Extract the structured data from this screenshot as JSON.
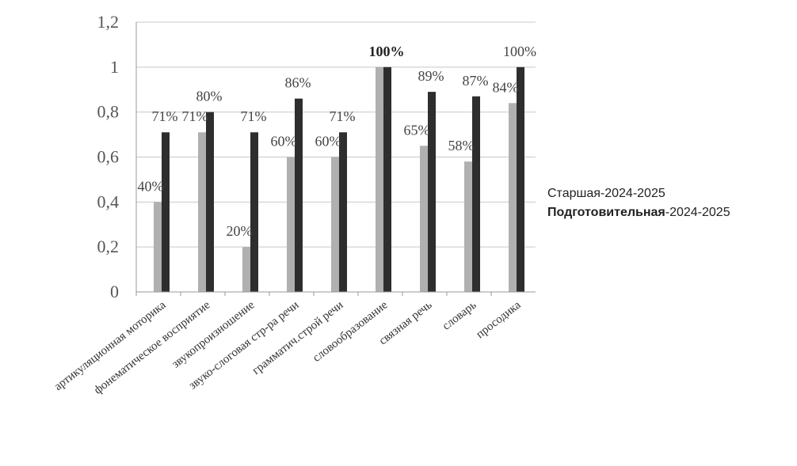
{
  "chart_data": {
    "type": "bar",
    "ylim": [
      0,
      1.2
    ],
    "yticks": [
      0,
      0.2,
      0.4,
      0.6,
      0.8,
      1,
      1.2
    ],
    "ytick_labels": [
      "0",
      "0,2",
      "0,4",
      "0,6",
      "0,8",
      "1",
      "1,2"
    ],
    "grid": true,
    "legend_position": "right",
    "categories": [
      "артикуляционная моторика",
      "фонематическое восприятие",
      "звукопроизношение",
      "звуко-слоговая стр-ра речи",
      "грамматич.строй речи",
      "словообразование",
      "связная речь",
      "словарь",
      "просодика"
    ],
    "series": [
      {
        "name": "Старшая-2024-2025",
        "color": "#b0b0b0",
        "values": [
          0.4,
          0.71,
          0.2,
          0.6,
          0.6,
          1.0,
          0.65,
          0.58,
          0.84
        ],
        "labels": [
          "40%",
          "71%",
          "20%",
          "60%",
          "60%",
          "",
          "65%",
          "58%",
          "84%"
        ]
      },
      {
        "name": "Подготовительная-2024-2025",
        "color": "#2e2e2e",
        "values": [
          0.71,
          0.8,
          0.71,
          0.86,
          0.71,
          1.0,
          0.89,
          0.87,
          1.0
        ],
        "labels": [
          "71%",
          "80%",
          "71%",
          "86%",
          "71%",
          "100%",
          "89%",
          "87%",
          "100%"
        ]
      }
    ]
  },
  "legend": {
    "items": [
      {
        "bold": "",
        "text": "Старшая-2024-2025"
      },
      {
        "bold": "Подготовительная",
        "text": "-2024-2025"
      }
    ]
  }
}
